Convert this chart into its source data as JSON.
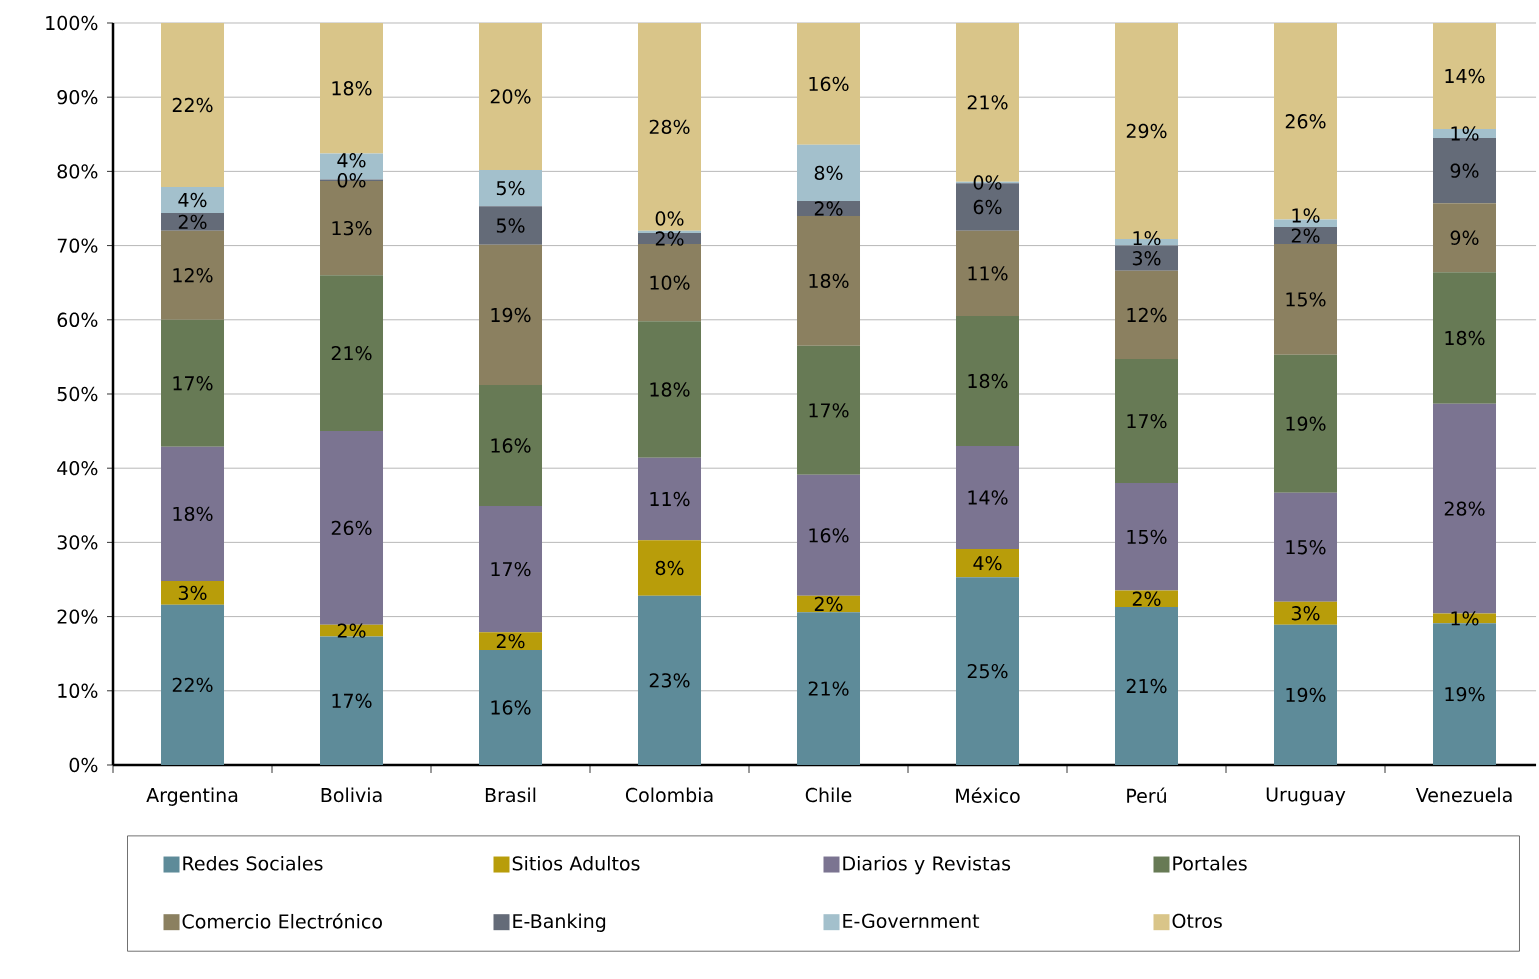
{
  "chart_data": {
    "type": "bar",
    "stacked": true,
    "grid": "y",
    "legend": "bottom",
    "categories": [
      "Argentina",
      "Bolivia",
      "Brasil",
      "Colombia",
      "Chile",
      "México",
      "Perú",
      "Uruguay",
      "Venezuela"
    ],
    "ylim": [
      0,
      100
    ],
    "yticks": [
      {
        "value": 0,
        "label": "0%"
      },
      {
        "value": 10,
        "label": "10%"
      },
      {
        "value": 20,
        "label": "20%"
      },
      {
        "value": 30,
        "label": "30%"
      },
      {
        "value": 40,
        "label": "40%"
      },
      {
        "value": 50,
        "label": "50%"
      },
      {
        "value": 60,
        "label": "60%"
      },
      {
        "value": 70,
        "label": "70%"
      },
      {
        "value": 80,
        "label": "80%"
      },
      {
        "value": 90,
        "label": "90%"
      },
      {
        "value": 100,
        "label": "100%"
      }
    ],
    "series": [
      {
        "name": "Redes Sociales",
        "color": "#5e8b99",
        "values": [
          21.6,
          17.3,
          15.5,
          22.8,
          20.6,
          25.3,
          21.3,
          18.9,
          19.1
        ],
        "value_labels": [
          "22%",
          "17%",
          "16%",
          "23%",
          "21%",
          "25%",
          "21%",
          "19%",
          "19%"
        ]
      },
      {
        "name": "Sitios Adultos",
        "color": "#b89d0a",
        "values": [
          3.2,
          1.6,
          2.4,
          7.5,
          2.2,
          3.8,
          2.2,
          3.1,
          1.3
        ],
        "value_labels": [
          "3%",
          "2%",
          "2%",
          "8%",
          "2%",
          "4%",
          "2%",
          "3%",
          "1%"
        ]
      },
      {
        "name": "Diarios y Revistas",
        "color": "#7b7491",
        "values": [
          18.1,
          26.1,
          17.0,
          11.1,
          16.3,
          13.9,
          14.5,
          14.7,
          28.3
        ],
        "value_labels": [
          "18%",
          "26%",
          "17%",
          "11%",
          "16%",
          "14%",
          "15%",
          "15%",
          "28%"
        ]
      },
      {
        "name": "Portales",
        "color": "#677a55",
        "values": [
          17.1,
          21.0,
          16.3,
          18.4,
          17.4,
          17.5,
          16.7,
          18.6,
          17.7
        ],
        "value_labels": [
          "17%",
          "21%",
          "16%",
          "18%",
          "17%",
          "18%",
          "17%",
          "19%",
          "18%"
        ]
      },
      {
        "name": "Comercio Electrónico",
        "color": "#8b8060",
        "values": [
          12.0,
          12.7,
          18.9,
          10.4,
          17.5,
          11.5,
          11.9,
          14.9,
          9.3
        ],
        "value_labels": [
          "12%",
          "13%",
          "19%",
          "10%",
          "18%",
          "11%",
          "12%",
          "15%",
          "9%"
        ]
      },
      {
        "name": "E-Banking",
        "color": "#646b78",
        "values": [
          2.4,
          0.2,
          5.2,
          1.5,
          2.0,
          6.4,
          3.4,
          2.3,
          8.8
        ],
        "value_labels": [
          "2%",
          "0%",
          "5%",
          "2%",
          "2%",
          "6%",
          "3%",
          "2%",
          "9%"
        ]
      },
      {
        "name": "E-Government",
        "color": "#a3c0cc",
        "values": [
          3.5,
          3.5,
          4.9,
          0.3,
          7.6,
          0.2,
          0.9,
          1.0,
          1.2
        ],
        "value_labels": [
          "4%",
          "4%",
          "5%",
          "0%",
          "8%",
          "0%",
          "1%",
          "1%",
          "1%"
        ]
      },
      {
        "name": "Otros",
        "color": "#d9c589",
        "values": [
          22.1,
          17.6,
          19.8,
          28.0,
          16.4,
          21.4,
          29.1,
          26.5,
          14.3
        ],
        "value_labels": [
          "22%",
          "18%",
          "20%",
          "28%",
          "16%",
          "21%",
          "29%",
          "26%",
          "14%"
        ]
      }
    ]
  }
}
